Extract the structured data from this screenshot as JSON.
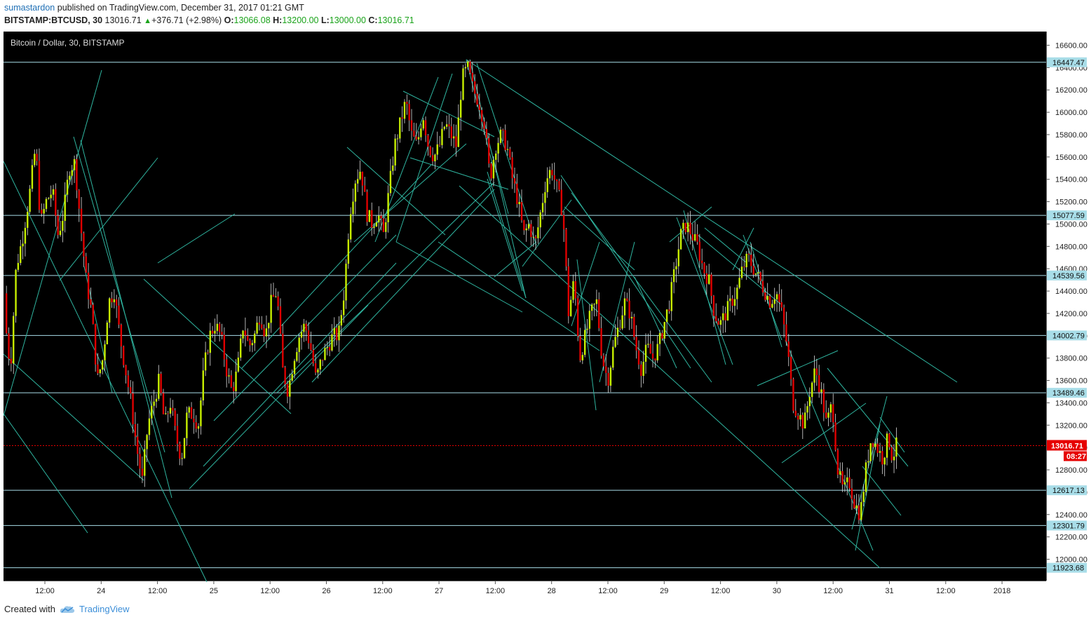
{
  "header": {
    "user": "sumastardon",
    "published_text": " published on TradingView.com, December 31, 2017 01:21 GMT",
    "symbol": "BITSTAMP:BTCUSD, 30",
    "last": "13016.71",
    "change": "+376.71 (+2.98%)",
    "o_label": "O:",
    "o_value": "13066.08",
    "h_label": "H:",
    "h_value": "13200.00",
    "l_label": "L:",
    "l_value": "13000.00",
    "c_label": "C:",
    "c_value": "13016.71"
  },
  "footer": {
    "created_with": "Created with",
    "brand": "TradingView"
  },
  "chart_data": {
    "type": "candlestick",
    "title": "Bitcoin / Dollar, 30, BITSTAMP",
    "ylim": [
      11800,
      16750
    ],
    "y_ticks": [
      12000,
      12200,
      12400,
      12600,
      12800,
      13000,
      13200,
      13400,
      13600,
      13800,
      14000,
      14200,
      14400,
      14600,
      14800,
      15000,
      15200,
      15400,
      15600,
      15800,
      16000,
      16200,
      16400,
      16600
    ],
    "x_ticks": [
      "12:00",
      "24",
      "12:00",
      "25",
      "12:00",
      "26",
      "12:00",
      "27",
      "12:00",
      "28",
      "12:00",
      "29",
      "12:00",
      "30",
      "12:00",
      "31",
      "12:00",
      "2018"
    ],
    "horizontal_levels": [
      16447.47,
      15077.59,
      14539.56,
      14002.79,
      13489.46,
      12617.13,
      12301.79,
      11923.68
    ],
    "last_price": 13016.71,
    "countdown": "08:27",
    "colors": {
      "background": "#000000",
      "up": "#c8f000",
      "down": "#e00000",
      "trendline": "#2fb5a0",
      "level_line": "#a8dde8",
      "price_badge": "#e60000",
      "level_badge": "#a8dde8"
    },
    "path": [
      [
        0,
        14800
      ],
      [
        5,
        14100
      ],
      [
        12,
        13700
      ],
      [
        20,
        14600
      ],
      [
        30,
        14900
      ],
      [
        40,
        15300
      ],
      [
        48,
        15700
      ],
      [
        55,
        15000
      ],
      [
        63,
        15200
      ],
      [
        72,
        15300
      ],
      [
        80,
        14900
      ],
      [
        88,
        15100
      ],
      [
        96,
        15500
      ],
      [
        104,
        15550
      ],
      [
        112,
        15000
      ],
      [
        120,
        14500
      ],
      [
        128,
        14200
      ],
      [
        136,
        13600
      ],
      [
        144,
        13800
      ],
      [
        152,
        14300
      ],
      [
        160,
        14400
      ],
      [
        168,
        14000
      ],
      [
        176,
        13700
      ],
      [
        184,
        13400
      ],
      [
        192,
        13000
      ],
      [
        200,
        12700
      ],
      [
        208,
        13200
      ],
      [
        216,
        13400
      ],
      [
        224,
        13600
      ],
      [
        232,
        13200
      ],
      [
        240,
        13400
      ],
      [
        248,
        13100
      ],
      [
        256,
        12900
      ],
      [
        264,
        13300
      ],
      [
        272,
        13300
      ],
      [
        280,
        13200
      ],
      [
        288,
        13700
      ],
      [
        296,
        14000
      ],
      [
        304,
        14100
      ],
      [
        312,
        14000
      ],
      [
        320,
        13700
      ],
      [
        328,
        13500
      ],
      [
        336,
        13700
      ],
      [
        344,
        14100
      ],
      [
        352,
        13900
      ],
      [
        360,
        14000
      ],
      [
        368,
        14200
      ],
      [
        376,
        14000
      ],
      [
        384,
        14300
      ],
      [
        392,
        14400
      ],
      [
        400,
        13700
      ],
      [
        408,
        13500
      ],
      [
        416,
        13800
      ],
      [
        424,
        14000
      ],
      [
        432,
        14100
      ],
      [
        440,
        13900
      ],
      [
        448,
        13600
      ],
      [
        456,
        13800
      ],
      [
        464,
        13900
      ],
      [
        472,
        14000
      ],
      [
        480,
        14000
      ],
      [
        488,
        14400
      ],
      [
        496,
        15100
      ],
      [
        504,
        15400
      ],
      [
        512,
        15500
      ],
      [
        520,
        15100
      ],
      [
        528,
        15000
      ],
      [
        536,
        15100
      ],
      [
        544,
        14900
      ],
      [
        552,
        15300
      ],
      [
        560,
        15700
      ],
      [
        568,
        15900
      ],
      [
        576,
        16100
      ],
      [
        584,
        15800
      ],
      [
        592,
        15700
      ],
      [
        600,
        16000
      ],
      [
        608,
        15700
      ],
      [
        616,
        15600
      ],
      [
        624,
        15700
      ],
      [
        632,
        15900
      ],
      [
        640,
        15800
      ],
      [
        648,
        15700
      ],
      [
        656,
        16300
      ],
      [
        664,
        16400
      ],
      [
        672,
        16200
      ],
      [
        680,
        16100
      ],
      [
        688,
        15900
      ],
      [
        696,
        15400
      ],
      [
        704,
        15700
      ],
      [
        712,
        15800
      ],
      [
        720,
        15700
      ],
      [
        728,
        15400
      ],
      [
        736,
        15200
      ],
      [
        744,
        14900
      ],
      [
        752,
        15000
      ],
      [
        760,
        14800
      ],
      [
        768,
        15100
      ],
      [
        776,
        15400
      ],
      [
        784,
        15500
      ],
      [
        792,
        15300
      ],
      [
        800,
        15100
      ],
      [
        808,
        14200
      ],
      [
        816,
        14500
      ],
      [
        824,
        13800
      ],
      [
        832,
        14000
      ],
      [
        840,
        14200
      ],
      [
        848,
        14300
      ],
      [
        856,
        13800
      ],
      [
        864,
        13600
      ],
      [
        872,
        13900
      ],
      [
        880,
        14100
      ],
      [
        888,
        14300
      ],
      [
        896,
        14200
      ],
      [
        904,
        13900
      ],
      [
        912,
        13700
      ],
      [
        920,
        13900
      ],
      [
        928,
        13800
      ],
      [
        936,
        13900
      ],
      [
        944,
        14100
      ],
      [
        952,
        14300
      ],
      [
        960,
        14600
      ],
      [
        968,
        14900
      ],
      [
        976,
        15000
      ],
      [
        984,
        14900
      ],
      [
        992,
        14800
      ],
      [
        1000,
        14600
      ],
      [
        1008,
        14500
      ],
      [
        1016,
        14200
      ],
      [
        1024,
        14100
      ],
      [
        1032,
        14200
      ],
      [
        1040,
        14300
      ],
      [
        1048,
        14400
      ],
      [
        1056,
        14600
      ],
      [
        1064,
        14700
      ],
      [
        1072,
        14600
      ],
      [
        1080,
        14500
      ],
      [
        1088,
        14400
      ],
      [
        1096,
        14300
      ],
      [
        1104,
        14400
      ],
      [
        1112,
        14200
      ],
      [
        1120,
        13900
      ],
      [
        1128,
        13400
      ],
      [
        1136,
        13300
      ],
      [
        1144,
        13200
      ],
      [
        1152,
        13500
      ],
      [
        1160,
        13700
      ],
      [
        1168,
        13500
      ],
      [
        1176,
        13200
      ],
      [
        1184,
        13400
      ],
      [
        1192,
        12800
      ],
      [
        1200,
        12600
      ],
      [
        1208,
        12700
      ],
      [
        1216,
        12500
      ],
      [
        1224,
        12400
      ],
      [
        1232,
        12800
      ],
      [
        1240,
        13100
      ],
      [
        1248,
        13000
      ],
      [
        1256,
        12900
      ],
      [
        1264,
        13100
      ],
      [
        1270,
        12900
      ],
      [
        1275,
        13016.71
      ]
    ]
  }
}
